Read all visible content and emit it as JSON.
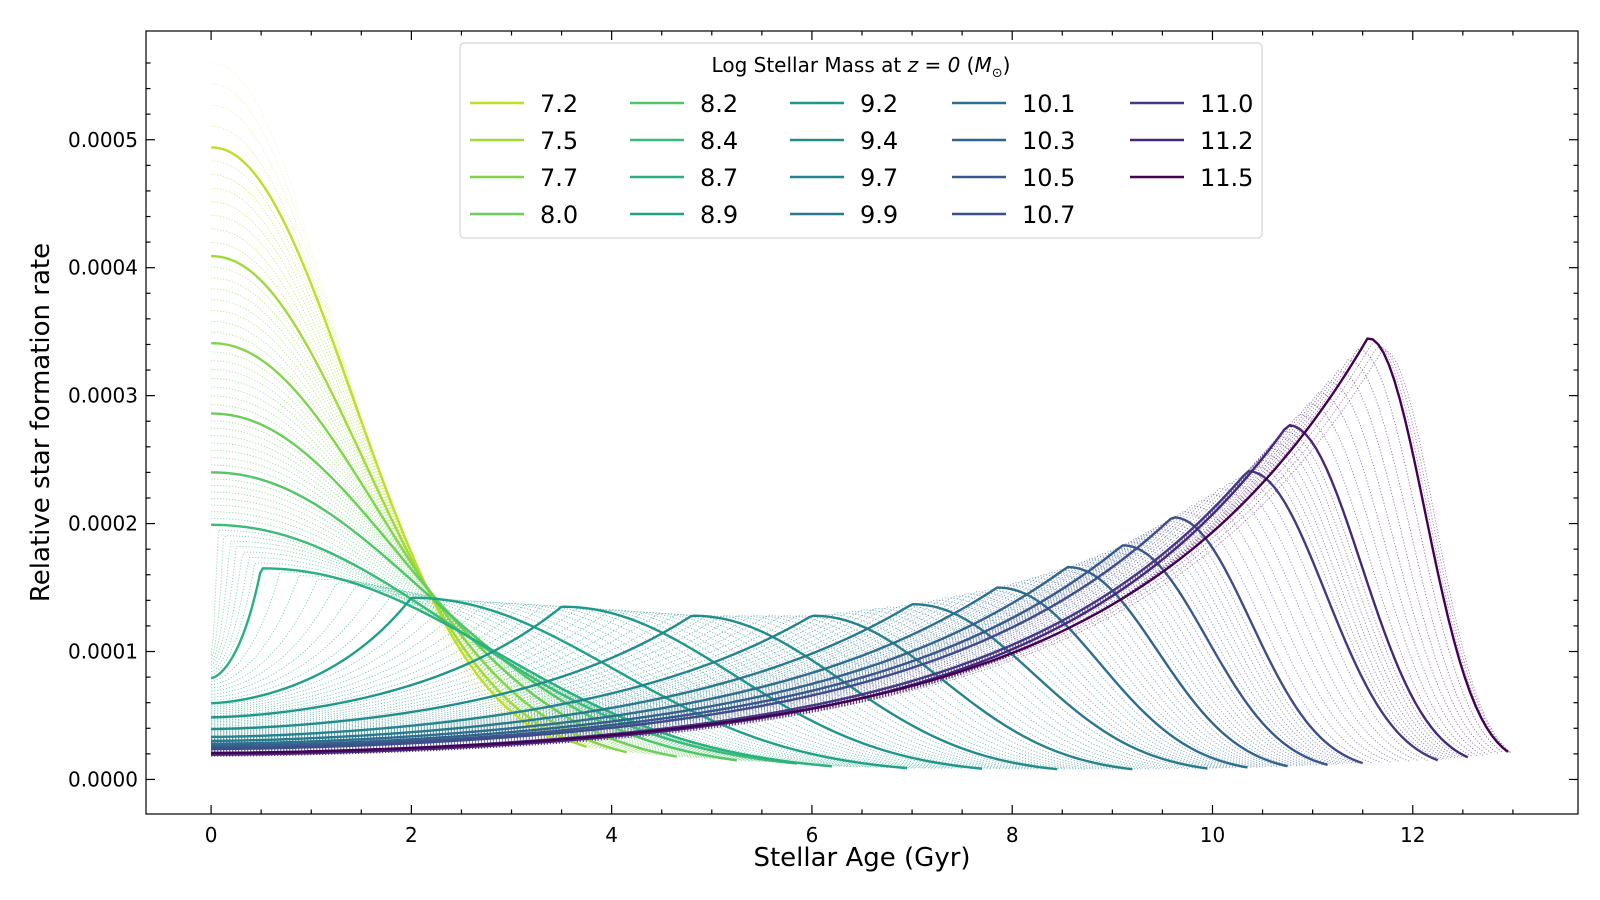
{
  "chart_data": {
    "type": "line",
    "xlabel": "Stellar Age (Gyr)",
    "ylabel": "Relative star formation rate",
    "xlim": [
      -0.65,
      13.65
    ],
    "ylim": [
      -2.7e-05,
      0.000585
    ],
    "x_ticks": [
      0,
      2,
      4,
      6,
      8,
      10,
      12
    ],
    "x_tick_labels": [
      "0",
      "2",
      "4",
      "6",
      "8",
      "10",
      "12"
    ],
    "y_ticks": [
      0.0,
      0.0001,
      0.0002,
      0.0003,
      0.0004,
      0.0005
    ],
    "y_tick_labels": [
      "0.0000",
      "0.0001",
      "0.0002",
      "0.0003",
      "0.0004",
      "0.0005"
    ],
    "grid": false,
    "colormap": "viridis (reversed: low mass yellow, high mass purple)",
    "legend": {
      "title_prefix": "Log Stellar Mass at ",
      "title_math": "z = 0",
      "title_unit_open": " (",
      "title_unit_symbol": "M",
      "title_unit_sub": "⊙",
      "title_unit_close": ")",
      "placement": "top-center",
      "columns": 5
    },
    "series": [
      {
        "name": "7.2",
        "log_mass": 7.2,
        "color": "#bddf26",
        "peak_age": 0.0,
        "peak_sfr": 0.000494,
        "end_age": 3.45
      },
      {
        "name": "7.5",
        "log_mass": 7.5,
        "color": "#a0da39",
        "peak_age": 0.0,
        "peak_sfr": 0.000409,
        "end_age": 3.75
      },
      {
        "name": "7.7",
        "log_mass": 7.7,
        "color": "#84d44b",
        "peak_age": 0.0,
        "peak_sfr": 0.000341,
        "end_age": 4.15
      },
      {
        "name": "8.0",
        "log_mass": 8.0,
        "color": "#6ccd5a",
        "peak_age": 0.0,
        "peak_sfr": 0.000286,
        "end_age": 4.65
      },
      {
        "name": "8.2",
        "log_mass": 8.2,
        "color": "#52c569",
        "peak_age": 0.0,
        "peak_sfr": 0.00024,
        "end_age": 5.25
      },
      {
        "name": "8.4",
        "log_mass": 8.4,
        "color": "#3bbb75",
        "peak_age": 0.0,
        "peak_sfr": 0.000199,
        "end_age": 5.85
      },
      {
        "name": "8.7",
        "log_mass": 8.7,
        "color": "#2ab07f",
        "peak_age": 0.5,
        "peak_sfr": 0.000165,
        "end_age": 6.2
      },
      {
        "name": "8.9",
        "log_mass": 8.9,
        "color": "#1fa187",
        "peak_age": 2.0,
        "peak_sfr": 0.000142,
        "end_age": 6.95
      },
      {
        "name": "9.2",
        "log_mass": 9.2,
        "color": "#1e978a",
        "peak_age": 3.5,
        "peak_sfr": 0.000135,
        "end_age": 7.7
      },
      {
        "name": "9.4",
        "log_mass": 9.4,
        "color": "#228c8d",
        "peak_age": 4.8,
        "peak_sfr": 0.000128,
        "end_age": 8.45
      },
      {
        "name": "9.7",
        "log_mass": 9.7,
        "color": "#25838e",
        "peak_age": 6.0,
        "peak_sfr": 0.000128,
        "end_age": 9.2
      },
      {
        "name": "9.9",
        "log_mass": 9.9,
        "color": "#29798e",
        "peak_age": 7.0,
        "peak_sfr": 0.000137,
        "end_age": 9.95
      },
      {
        "name": "10.1",
        "log_mass": 10.1,
        "color": "#2e6e8e",
        "peak_age": 7.85,
        "peak_sfr": 0.00015,
        "end_age": 10.35
      },
      {
        "name": "10.3",
        "log_mass": 10.3,
        "color": "#33638d",
        "peak_age": 8.55,
        "peak_sfr": 0.000166,
        "end_age": 10.75
      },
      {
        "name": "10.5",
        "log_mass": 10.5,
        "color": "#38588c",
        "peak_age": 9.1,
        "peak_sfr": 0.000183,
        "end_age": 11.15
      },
      {
        "name": "10.7",
        "log_mass": 10.7,
        "color": "#3e4c8a",
        "peak_age": 9.6,
        "peak_sfr": 0.000205,
        "end_age": 11.5
      },
      {
        "name": "11.0",
        "log_mass": 11.0,
        "color": "#443983",
        "peak_age": 10.35,
        "peak_sfr": 0.000241,
        "end_age": 12.25
      },
      {
        "name": "11.2",
        "log_mass": 11.2,
        "color": "#46277a",
        "peak_age": 10.75,
        "peak_sfr": 0.000277,
        "end_age": 12.55
      },
      {
        "name": "11.5",
        "log_mass": 11.5,
        "color": "#440154",
        "peak_age": 11.55,
        "peak_sfr": 0.000345,
        "end_age": 12.95
      }
    ]
  }
}
